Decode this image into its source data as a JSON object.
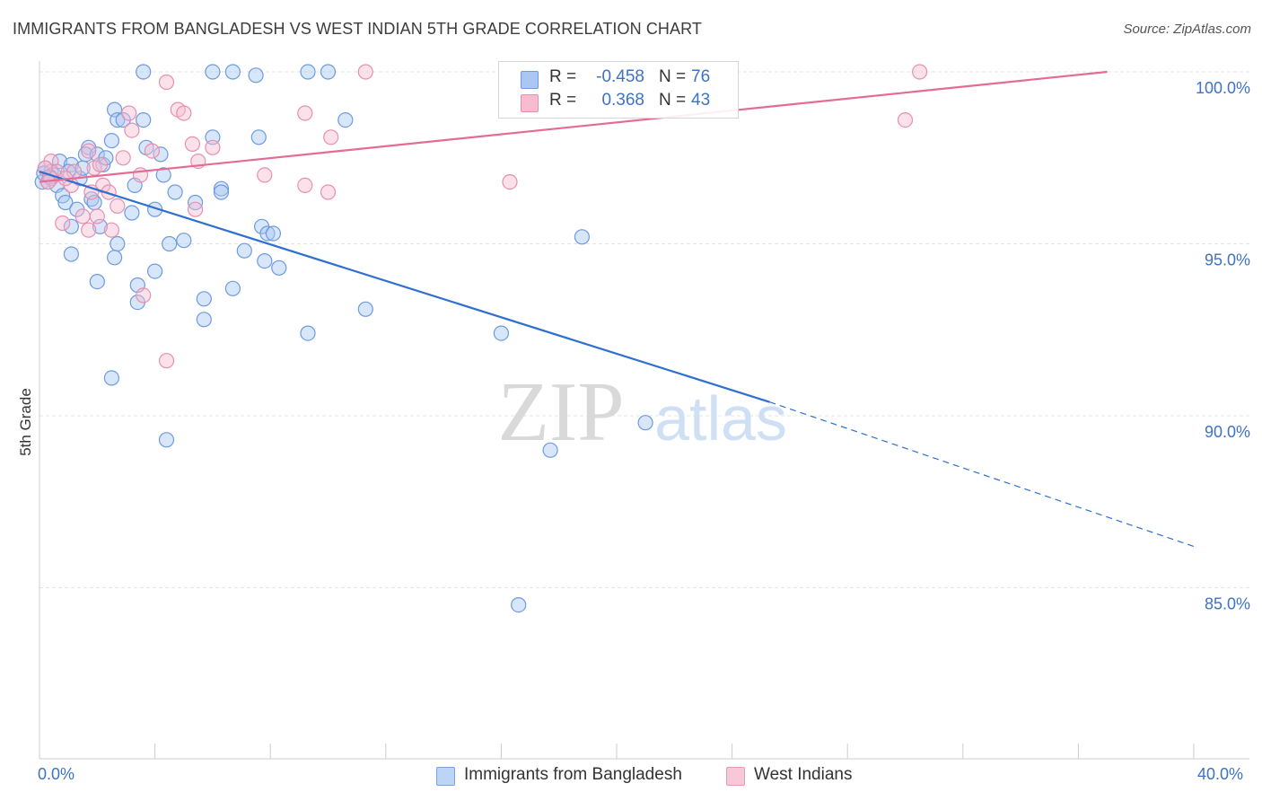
{
  "title": "IMMIGRANTS FROM BANGLADESH VS WEST INDIAN 5TH GRADE CORRELATION CHART",
  "source": "Source: ZipAtlas.com",
  "watermark": {
    "zip": "ZIP",
    "atlas": "atlas"
  },
  "legend": {
    "r_label": "R =",
    "n_label": "N =",
    "rows": [
      {
        "r": "-0.458",
        "n": "76",
        "color": "#a9c7f2",
        "edge": "#6d9ae0"
      },
      {
        "r": "0.368",
        "n": "43",
        "color": "#f7bcd0",
        "edge": "#e690b0"
      }
    ]
  },
  "bottom_legend": [
    {
      "label": "Immigrants from Bangladesh",
      "color": "#bcd4f5",
      "edge": "#7aa2e0"
    },
    {
      "label": "West Indians",
      "color": "#f8c8d8",
      "edge": "#e89ab6"
    }
  ],
  "chart_data": {
    "type": "scatter",
    "title": "IMMIGRANTS FROM BANGLADESH VS WEST INDIAN 5TH GRADE CORRELATION CHART",
    "xlabel": "",
    "ylabel": "5th Grade",
    "xlim": [
      0,
      40
    ],
    "ylim": [
      80.5,
      100.4
    ],
    "x_tick_labels": [
      "0.0%",
      "40.0%"
    ],
    "y_ticks": [
      85,
      90,
      95,
      100
    ],
    "y_tick_labels": [
      "85.0%",
      "90.0%",
      "95.0%",
      "100.0%"
    ],
    "grid": true,
    "series": [
      {
        "name": "Immigrants from Bangladesh",
        "color": "#a9c7f2",
        "edge": "#6d9ae0",
        "trend_color": "#2e6fcf",
        "trend": {
          "x0": 0.0,
          "y0": 97.1,
          "x1": 25.3,
          "y1": 90.4,
          "dash_x1": 40.0,
          "dash_y1": 86.2
        },
        "points": [
          [
            3.6,
            100.0
          ],
          [
            6.0,
            100.0
          ],
          [
            6.7,
            100.0
          ],
          [
            7.5,
            99.9
          ],
          [
            9.3,
            100.0
          ],
          [
            10.0,
            100.0
          ],
          [
            2.6,
            98.9
          ],
          [
            2.7,
            98.6
          ],
          [
            2.9,
            98.6
          ],
          [
            3.6,
            98.6
          ],
          [
            10.6,
            98.6
          ],
          [
            2.5,
            98.0
          ],
          [
            6.0,
            98.1
          ],
          [
            7.6,
            98.1
          ],
          [
            1.7,
            97.8
          ],
          [
            3.7,
            97.8
          ],
          [
            1.6,
            97.6
          ],
          [
            2.0,
            97.6
          ],
          [
            4.2,
            97.6
          ],
          [
            0.7,
            97.4
          ],
          [
            1.1,
            97.3
          ],
          [
            2.2,
            97.3
          ],
          [
            0.2,
            97.2
          ],
          [
            0.4,
            97.1
          ],
          [
            1.0,
            97.1
          ],
          [
            0.5,
            97.0
          ],
          [
            4.3,
            97.0
          ],
          [
            1.4,
            96.9
          ],
          [
            0.1,
            96.8
          ],
          [
            0.3,
            96.8
          ],
          [
            0.6,
            96.7
          ],
          [
            3.3,
            96.7
          ],
          [
            6.3,
            96.6
          ],
          [
            4.7,
            96.5
          ],
          [
            6.3,
            96.5
          ],
          [
            0.8,
            96.4
          ],
          [
            1.8,
            96.3
          ],
          [
            5.4,
            96.2
          ],
          [
            0.9,
            96.2
          ],
          [
            1.9,
            96.2
          ],
          [
            1.3,
            96.0
          ],
          [
            4.0,
            96.0
          ],
          [
            3.2,
            95.9
          ],
          [
            1.1,
            95.5
          ],
          [
            2.1,
            95.5
          ],
          [
            7.7,
            95.5
          ],
          [
            7.9,
            95.3
          ],
          [
            8.1,
            95.3
          ],
          [
            18.8,
            95.2
          ],
          [
            5.0,
            95.1
          ],
          [
            4.5,
            95.0
          ],
          [
            2.7,
            95.0
          ],
          [
            7.1,
            94.8
          ],
          [
            1.1,
            94.7
          ],
          [
            2.6,
            94.6
          ],
          [
            7.8,
            94.5
          ],
          [
            8.3,
            94.3
          ],
          [
            4.0,
            94.2
          ],
          [
            2.0,
            93.9
          ],
          [
            3.4,
            93.8
          ],
          [
            6.7,
            93.7
          ],
          [
            5.7,
            93.4
          ],
          [
            3.4,
            93.3
          ],
          [
            11.3,
            93.1
          ],
          [
            5.7,
            92.8
          ],
          [
            9.3,
            92.4
          ],
          [
            16.0,
            92.4
          ],
          [
            2.5,
            91.1
          ],
          [
            21.0,
            89.8
          ],
          [
            4.4,
            89.3
          ],
          [
            17.7,
            89.0
          ],
          [
            16.6,
            84.5
          ],
          [
            0.15,
            97.05
          ],
          [
            0.35,
            96.95
          ],
          [
            1.5,
            97.2
          ],
          [
            2.3,
            97.5
          ]
        ]
      },
      {
        "name": "West Indians",
        "color": "#f7bcd0",
        "edge": "#e690b0",
        "trend_color": "#e46b94",
        "trend": {
          "x0": 0.0,
          "y0": 96.8,
          "x1": 37.0,
          "y1": 100.0
        },
        "points": [
          [
            11.3,
            100.0
          ],
          [
            30.5,
            100.0
          ],
          [
            4.4,
            99.7
          ],
          [
            3.1,
            98.8
          ],
          [
            4.8,
            98.9
          ],
          [
            5.0,
            98.8
          ],
          [
            9.2,
            98.8
          ],
          [
            30.0,
            98.6
          ],
          [
            3.2,
            98.3
          ],
          [
            10.1,
            98.1
          ],
          [
            5.3,
            97.9
          ],
          [
            6.0,
            97.8
          ],
          [
            1.7,
            97.7
          ],
          [
            3.9,
            97.7
          ],
          [
            2.9,
            97.5
          ],
          [
            5.5,
            97.4
          ],
          [
            0.4,
            97.4
          ],
          [
            1.9,
            97.2
          ],
          [
            0.6,
            97.1
          ],
          [
            7.8,
            97.0
          ],
          [
            0.4,
            96.9
          ],
          [
            16.3,
            96.8
          ],
          [
            1.1,
            96.7
          ],
          [
            2.2,
            96.7
          ],
          [
            9.2,
            96.7
          ],
          [
            2.4,
            96.5
          ],
          [
            1.8,
            96.5
          ],
          [
            10.0,
            96.5
          ],
          [
            2.7,
            96.1
          ],
          [
            5.4,
            96.0
          ],
          [
            2.0,
            95.8
          ],
          [
            1.5,
            95.8
          ],
          [
            0.8,
            95.6
          ],
          [
            1.7,
            95.4
          ],
          [
            2.5,
            95.4
          ],
          [
            3.6,
            93.5
          ],
          [
            4.4,
            91.6
          ],
          [
            0.2,
            97.2
          ],
          [
            0.3,
            96.8
          ],
          [
            1.2,
            97.1
          ],
          [
            2.1,
            97.3
          ],
          [
            0.9,
            96.9
          ],
          [
            3.5,
            97.0
          ]
        ]
      }
    ]
  }
}
